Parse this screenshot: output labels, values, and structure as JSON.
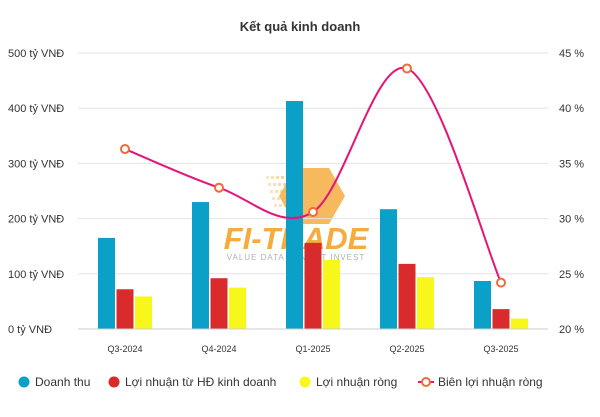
{
  "chart_data": {
    "type": "bar",
    "title": "Kết quả kinh doanh",
    "categories": [
      "Q3-2024",
      "Q4-2024",
      "Q1-2025",
      "Q2-2025",
      "Q3-2025"
    ],
    "y_left": {
      "min": 0,
      "max": 500,
      "step": 100,
      "tick_labels": [
        "0 tỷ VNĐ",
        "100 tỷ VNĐ",
        "200 tỷ VNĐ",
        "300 tỷ VNĐ",
        "400 tỷ VNĐ",
        "500 tỷ VNĐ"
      ]
    },
    "y_right": {
      "min": 20,
      "max": 45,
      "step": 5,
      "tick_labels": [
        "20 %",
        "25 %",
        "30 %",
        "35 %",
        "40 %",
        "45 %"
      ]
    },
    "series": [
      {
        "name": "Doanh thu",
        "kind": "bar",
        "axis": "left",
        "color": "#0aa0c8",
        "values": [
          165,
          230,
          413,
          217,
          87
        ]
      },
      {
        "name": "Lợi nhuận từ HĐ kinh doanh",
        "kind": "bar",
        "axis": "left",
        "color": "#d92b2b",
        "values": [
          72,
          92,
          156,
          118,
          36
        ]
      },
      {
        "name": "Lợi nhuận ròng",
        "kind": "bar",
        "axis": "left",
        "color": "#f7f71b",
        "values": [
          59,
          75,
          125,
          94,
          19
        ]
      },
      {
        "name": "Biên lợi nhuận ròng",
        "kind": "line",
        "axis": "right",
        "color": "#e6147a",
        "marker_color": "#f06a3a",
        "values": [
          36.3,
          32.8,
          30.6,
          43.6,
          24.2
        ]
      }
    ],
    "grid": "horizontal",
    "legend_position": "bottom",
    "watermark": {
      "text": "FI-TRADE",
      "subtitle": "VALUE DATA - SMART INVEST",
      "color": "#f29a16"
    }
  }
}
